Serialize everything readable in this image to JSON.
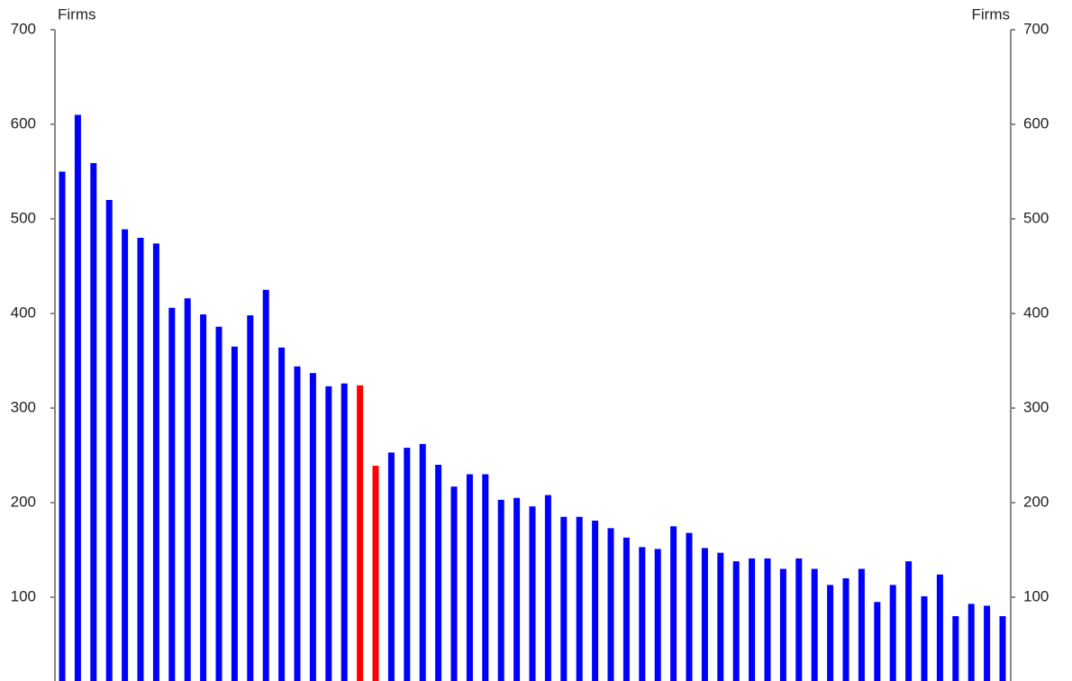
{
  "chart_data": {
    "type": "bar",
    "y_label": "Firms",
    "y2_label": "Firms",
    "values": [
      550,
      610,
      559,
      520,
      489,
      480,
      474,
      406,
      416,
      399,
      386,
      365,
      398,
      425,
      364,
      344,
      337,
      323,
      326,
      324,
      239,
      253,
      258,
      262,
      240,
      217,
      230,
      230,
      203,
      205,
      196,
      208,
      185,
      185,
      181,
      173,
      163,
      153,
      151,
      175,
      168,
      152,
      147,
      138,
      141,
      141,
      130,
      141,
      130,
      113,
      120,
      130,
      95,
      113,
      138,
      101,
      124,
      80,
      93,
      91,
      80
    ],
    "colors": [
      "#0000ff",
      "#0000ff",
      "#0000ff",
      "#0000ff",
      "#0000ff",
      "#0000ff",
      "#0000ff",
      "#0000ff",
      "#0000ff",
      "#0000ff",
      "#0000ff",
      "#0000ff",
      "#0000ff",
      "#0000ff",
      "#0000ff",
      "#0000ff",
      "#0000ff",
      "#0000ff",
      "#0000ff",
      "#ff0000",
      "#ff0000",
      "#0000ff",
      "#0000ff",
      "#0000ff",
      "#0000ff",
      "#0000ff",
      "#0000ff",
      "#0000ff",
      "#0000ff",
      "#0000ff",
      "#0000ff",
      "#0000ff",
      "#0000ff",
      "#0000ff",
      "#0000ff",
      "#0000ff",
      "#0000ff",
      "#0000ff",
      "#0000ff",
      "#0000ff",
      "#0000ff",
      "#0000ff",
      "#0000ff",
      "#0000ff",
      "#0000ff",
      "#0000ff",
      "#0000ff",
      "#0000ff",
      "#0000ff",
      "#0000ff",
      "#0000ff",
      "#0000ff",
      "#0000ff",
      "#0000ff",
      "#0000ff",
      "#0000ff",
      "#0000ff",
      "#0000ff",
      "#0000ff",
      "#0000ff",
      "#0000ff"
    ],
    "ylim": [
      0,
      700
    ],
    "yticks": [
      100,
      200,
      300,
      400,
      500,
      600,
      700
    ],
    "y2lim": [
      0,
      700
    ],
    "y2ticks": [
      100,
      200,
      300,
      400,
      500,
      600,
      700
    ],
    "grid": false
  }
}
